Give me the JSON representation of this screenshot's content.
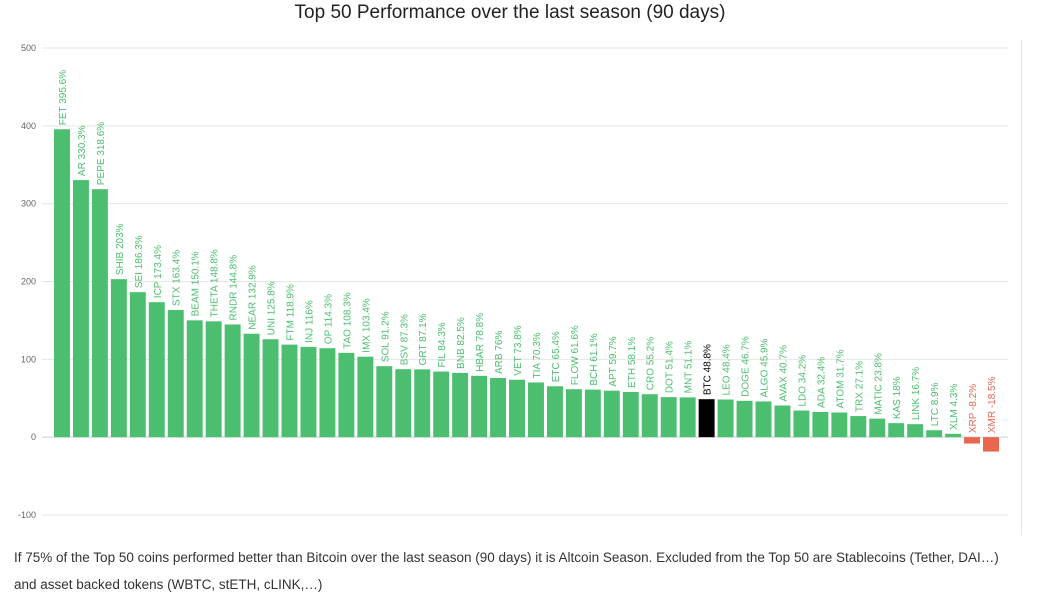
{
  "chart_data": {
    "type": "bar",
    "title": "Top 50 Performance over the last season (90 days)",
    "xlabel": "",
    "ylabel": "",
    "ylim": [
      -100,
      500
    ],
    "yticks": [
      -100,
      0,
      100,
      200,
      300,
      400,
      500
    ],
    "grid": true,
    "legend": "none",
    "colors": {
      "altcoin": "#4cbe6f",
      "bitcoin": "#000000",
      "negative": "#e9674f",
      "negative_label": "#e9674f",
      "label": "#4cbe6f",
      "bitcoin_label": "#000000"
    },
    "highlight": "BTC",
    "bars": [
      {
        "label": "FET 395.6%",
        "value": 395.6
      },
      {
        "label": "AR 330.3%",
        "value": 330.3
      },
      {
        "label": "PEPE 318.6%",
        "value": 318.6
      },
      {
        "label": "SHIB 203%",
        "value": 203
      },
      {
        "label": "SEI 186.3%",
        "value": 186.3
      },
      {
        "label": "ICP 173.4%",
        "value": 173.4
      },
      {
        "label": "STX 163.4%",
        "value": 163.4
      },
      {
        "label": "BEAM 150.1%",
        "value": 150.1
      },
      {
        "label": "THETA 148.8%",
        "value": 148.8
      },
      {
        "label": "RNDR 144.8%",
        "value": 144.8
      },
      {
        "label": "NEAR 132.9%",
        "value": 132.9
      },
      {
        "label": "UNI 125.8%",
        "value": 125.8
      },
      {
        "label": "FTM 118.9%",
        "value": 118.9
      },
      {
        "label": "INJ 116%",
        "value": 116
      },
      {
        "label": "OP 114.3%",
        "value": 114.3
      },
      {
        "label": "TAO 108.3%",
        "value": 108.3
      },
      {
        "label": "IMX 103.4%",
        "value": 103.4
      },
      {
        "label": "SOL 91.2%",
        "value": 91.2
      },
      {
        "label": "BSV 87.3%",
        "value": 87.3
      },
      {
        "label": "GRT 87.1%",
        "value": 87.1
      },
      {
        "label": "FIL 84.3%",
        "value": 84.3
      },
      {
        "label": "BNB 82.5%",
        "value": 82.5
      },
      {
        "label": "HBAR 78.8%",
        "value": 78.8
      },
      {
        "label": "ARB 76%",
        "value": 76
      },
      {
        "label": "VET 73.8%",
        "value": 73.8
      },
      {
        "label": "TIA 70.3%",
        "value": 70.3
      },
      {
        "label": "ETC 65.4%",
        "value": 65.4
      },
      {
        "label": "FLOW 61.6%",
        "value": 61.6
      },
      {
        "label": "BCH 61.1%",
        "value": 61.1
      },
      {
        "label": "APT 59.7%",
        "value": 59.7
      },
      {
        "label": "ETH 58.1%",
        "value": 58.1
      },
      {
        "label": "CRO 55.2%",
        "value": 55.2
      },
      {
        "label": "DOT 51.4%",
        "value": 51.4
      },
      {
        "label": "MNT 51.1%",
        "value": 51.1
      },
      {
        "label": "BTC 48.8%",
        "value": 48.8
      },
      {
        "label": "LEO 48.4%",
        "value": 48.4
      },
      {
        "label": "DOGE 46.7%",
        "value": 46.7
      },
      {
        "label": "ALGO 45.9%",
        "value": 45.9
      },
      {
        "label": "AVAX 40.7%",
        "value": 40.7
      },
      {
        "label": "LDO 34.2%",
        "value": 34.2
      },
      {
        "label": "ADA 32.4%",
        "value": 32.4
      },
      {
        "label": "ATOM 31.7%",
        "value": 31.7
      },
      {
        "label": "TRX 27.1%",
        "value": 27.1
      },
      {
        "label": "MATIC 23.8%",
        "value": 23.8
      },
      {
        "label": "KAS 18%",
        "value": 18
      },
      {
        "label": "LINK 16.7%",
        "value": 16.7
      },
      {
        "label": "LTC 8.9%",
        "value": 8.9
      },
      {
        "label": "XLM 4.3%",
        "value": 4.3
      },
      {
        "label": "XRP -8.2%",
        "value": -8.2
      },
      {
        "label": "XMR -18.5%",
        "value": -18.5
      }
    ]
  },
  "footnote": "If 75% of the Top 50 coins performed better than Bitcoin over the last season (90 days) it is Altcoin Season. Excluded from the Top 50 are Stablecoins (Tether, DAI…) and asset backed tokens (WBTC, stETH, cLINK,…)"
}
